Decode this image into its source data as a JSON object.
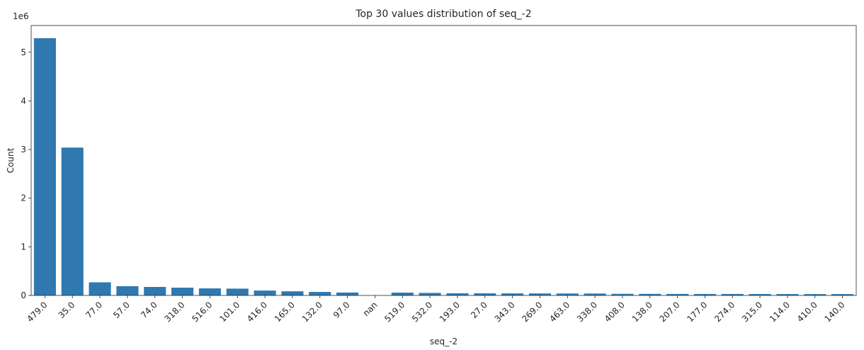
{
  "chart_data": {
    "type": "bar",
    "title": "Top 30 values distribution of seq_-2",
    "xlabel": "seq_-2",
    "ylabel": "Count",
    "y_multiplier_label": "1e6",
    "y_multiplier": 1000000,
    "ylim": [
      0,
      5550000
    ],
    "yticks": [
      0,
      1,
      2,
      3,
      4,
      5
    ],
    "grid": false,
    "bar_color": "#2f79b0",
    "categories": [
      "479.0",
      "35.0",
      "77.0",
      "57.0",
      "74.0",
      "318.0",
      "516.0",
      "101.0",
      "416.0",
      "165.0",
      "132.0",
      "97.0",
      "nan",
      "519.0",
      "532.0",
      "193.0",
      "27.0",
      "343.0",
      "269.0",
      "463.0",
      "338.0",
      "408.0",
      "138.0",
      "207.0",
      "177.0",
      "274.0",
      "315.0",
      "114.0",
      "410.0",
      "140.0"
    ],
    "values": [
      5290000,
      3040000,
      270000,
      190000,
      175000,
      160000,
      145000,
      140000,
      100000,
      85000,
      72000,
      60000,
      0,
      58000,
      52000,
      44000,
      43000,
      42000,
      41000,
      40000,
      39000,
      33000,
      32000,
      31000,
      30000,
      30000,
      29000,
      29000,
      28000,
      28000
    ]
  }
}
